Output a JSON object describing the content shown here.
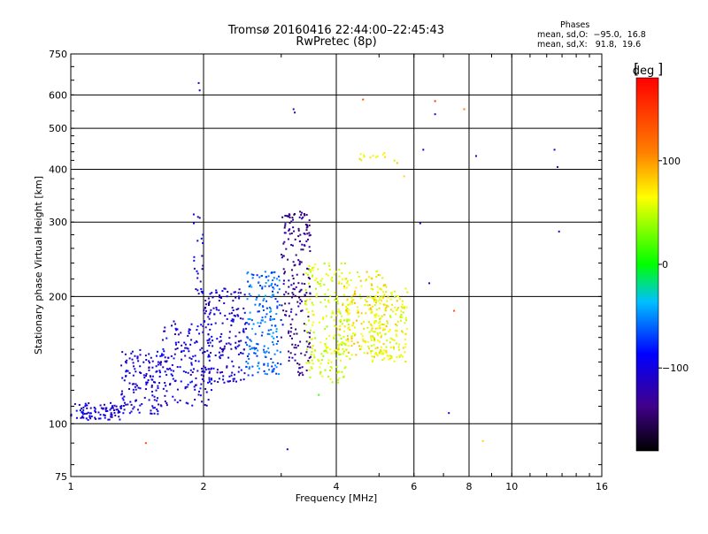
{
  "header": {
    "title": "Tromsø 20160416 22:44:00–22:45:43",
    "subtitle": "RwPretec (8p)"
  },
  "stats": {
    "heading": "Phases",
    "line1": "mean, sd,O:  −95.0,  16.8",
    "line2": "mean, sd,X:   91.8,  19.6"
  },
  "colorbar": {
    "unit": "deg",
    "ticks": [
      "100",
      "0",
      "−100"
    ],
    "stops": [
      "#ff0000",
      "#ff8000",
      "#ffff00",
      "#00ff00",
      "#00c0ff",
      "#0000ff",
      "#40008a",
      "#000000"
    ]
  },
  "chart_data": {
    "type": "scatter",
    "title": "",
    "xlabel": "Frequency [MHz]",
    "ylabel": "Stationary phase Virtual Height [km]",
    "x_scale": "log",
    "y_scale": "log",
    "xlim": [
      1,
      16
    ],
    "ylim": [
      75,
      750
    ],
    "xticks": [
      "1",
      "2",
      "4",
      "6",
      "8",
      "10",
      "16"
    ],
    "yticks": [
      "75",
      "100",
      "200",
      "300",
      "400",
      "500",
      "600",
      "750"
    ],
    "x_gridlines": [
      2,
      4,
      6,
      8,
      10
    ],
    "y_gridlines": [
      100,
      200,
      300,
      400,
      500,
      600
    ],
    "color_variable": "phase [deg]",
    "clusters": [
      {
        "x": [
          1.0,
          1.3
        ],
        "y": [
          102,
          112
        ],
        "n": 90,
        "phase": -95
      },
      {
        "x": [
          1.3,
          1.6
        ],
        "y": [
          105,
          150
        ],
        "n": 140,
        "phase": -95
      },
      {
        "x": [
          1.6,
          2.1
        ],
        "y": [
          110,
          175
        ],
        "n": 170,
        "phase": -92
      },
      {
        "x": [
          2.0,
          2.5
        ],
        "y": [
          125,
          210
        ],
        "n": 180,
        "phase": -95
      },
      {
        "x": [
          2.5,
          3.0
        ],
        "y": [
          130,
          230
        ],
        "n": 190,
        "phase": -55
      },
      {
        "x": [
          3.0,
          3.5
        ],
        "y": [
          130,
          320
        ],
        "n": 200,
        "phase": -120
      },
      {
        "x": [
          3.4,
          4.3
        ],
        "y": [
          125,
          240
        ],
        "n": 210,
        "phase": 85
      },
      {
        "x": [
          4.0,
          5.2
        ],
        "y": [
          145,
          230
        ],
        "n": 200,
        "phase": 100
      },
      {
        "x": [
          4.8,
          5.8
        ],
        "y": [
          140,
          210
        ],
        "n": 160,
        "phase": 95
      },
      {
        "x": [
          1.9,
          2.0
        ],
        "y": [
          200,
          320
        ],
        "n": 25,
        "phase": -95
      },
      {
        "x": [
          4.5,
          5.5
        ],
        "y": [
          410,
          440
        ],
        "n": 14,
        "phase": 95
      }
    ],
    "outliers": [
      {
        "x": 1.95,
        "y": 640,
        "phase": -100
      },
      {
        "x": 1.96,
        "y": 615,
        "phase": -100
      },
      {
        "x": 3.2,
        "y": 555,
        "phase": -110
      },
      {
        "x": 3.22,
        "y": 545,
        "phase": -110
      },
      {
        "x": 4.6,
        "y": 585,
        "phase": 150
      },
      {
        "x": 6.7,
        "y": 580,
        "phase": 160
      },
      {
        "x": 6.7,
        "y": 540,
        "phase": -100
      },
      {
        "x": 7.8,
        "y": 555,
        "phase": 130
      },
      {
        "x": 6.3,
        "y": 445,
        "phase": -100
      },
      {
        "x": 8.3,
        "y": 430,
        "phase": -100
      },
      {
        "x": 12.5,
        "y": 445,
        "phase": -100
      },
      {
        "x": 12.7,
        "y": 405,
        "phase": -100
      },
      {
        "x": 12.8,
        "y": 285,
        "phase": -100
      },
      {
        "x": 6.2,
        "y": 298,
        "phase": -95
      },
      {
        "x": 1.48,
        "y": 90,
        "phase": 150
      },
      {
        "x": 3.1,
        "y": 87,
        "phase": -100
      },
      {
        "x": 7.2,
        "y": 106,
        "phase": -90
      },
      {
        "x": 8.6,
        "y": 91,
        "phase": 110
      },
      {
        "x": 7.4,
        "y": 185,
        "phase": 150
      },
      {
        "x": 6.5,
        "y": 215,
        "phase": -100
      },
      {
        "x": 5.7,
        "y": 385,
        "phase": 110
      },
      {
        "x": 3.65,
        "y": 117,
        "phase": 40
      }
    ]
  }
}
